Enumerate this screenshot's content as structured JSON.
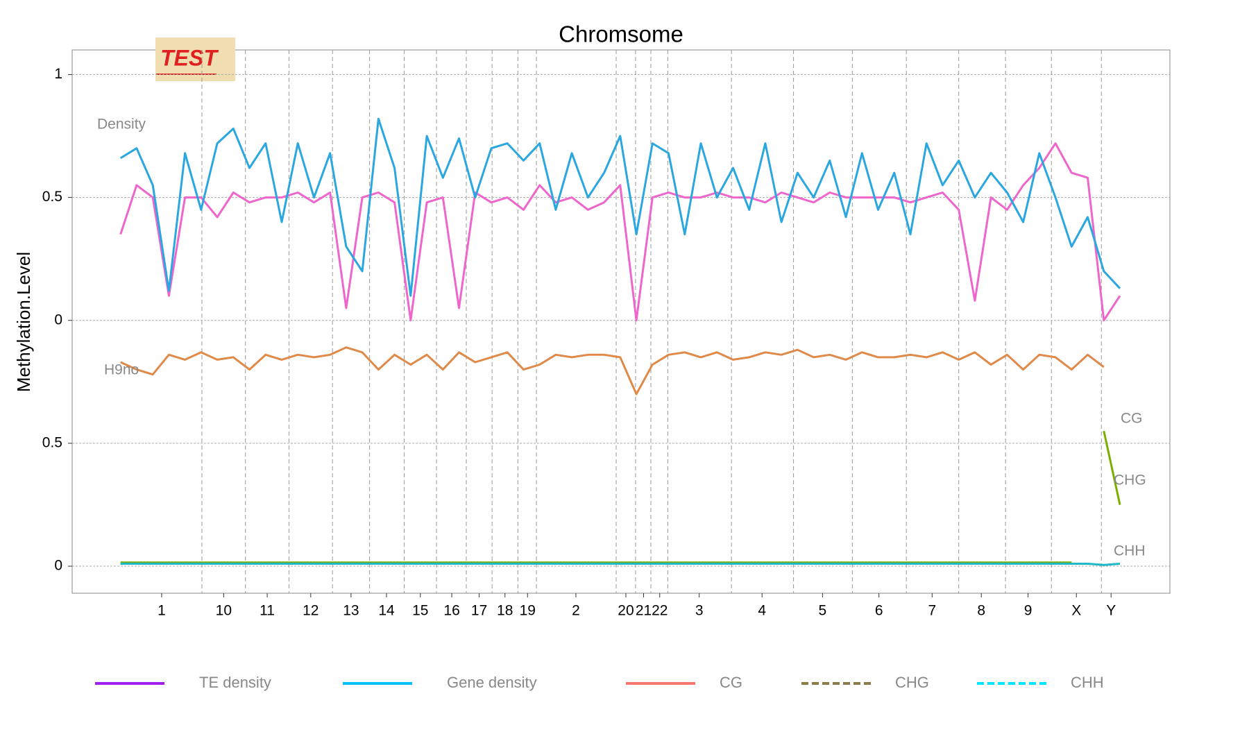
{
  "chart_data": {
    "type": "line",
    "title": "Chromsome",
    "y_label": "Methylation.Level",
    "badge": "TEST",
    "annotations": [
      "Density",
      "H9no",
      "CG",
      "CHG",
      "CHH"
    ],
    "xlim": [
      0,
      1362
    ],
    "ylim": [
      -1.11,
      1.1
    ],
    "yticks": [
      {
        "value": 1,
        "label": "1"
      },
      {
        "value": 0.5,
        "label": "0.5"
      },
      {
        "value": 0,
        "label": "0"
      },
      {
        "value": -0.5,
        "label": "0.5"
      },
      {
        "value": -1,
        "label": "0"
      }
    ],
    "xticks": [
      {
        "value": 111,
        "label": "1"
      },
      {
        "value": 188,
        "label": "10"
      },
      {
        "value": 242,
        "label": "11"
      },
      {
        "value": 296,
        "label": "12"
      },
      {
        "value": 346,
        "label": "13"
      },
      {
        "value": 390,
        "label": "14"
      },
      {
        "value": 432,
        "label": "15"
      },
      {
        "value": 471,
        "label": "16"
      },
      {
        "value": 505,
        "label": "17"
      },
      {
        "value": 537,
        "label": "18"
      },
      {
        "value": 565,
        "label": "19"
      },
      {
        "value": 625,
        "label": "2"
      },
      {
        "value": 687,
        "label": "20"
      },
      {
        "value": 709,
        "label": "21"
      },
      {
        "value": 729,
        "label": "22"
      },
      {
        "value": 778,
        "label": "3"
      },
      {
        "value": 856,
        "label": "4"
      },
      {
        "value": 931,
        "label": "5"
      },
      {
        "value": 1001,
        "label": "6"
      },
      {
        "value": 1067,
        "label": "7"
      },
      {
        "value": 1128,
        "label": "8"
      },
      {
        "value": 1186,
        "label": "9"
      },
      {
        "value": 1246,
        "label": "X"
      },
      {
        "value": 1289,
        "label": "Y"
      }
    ],
    "vlines": [
      161,
      215,
      269,
      323,
      369,
      412,
      452,
      489,
      521,
      553,
      576,
      675,
      699,
      718,
      739,
      818,
      895,
      968,
      1035,
      1100,
      1158,
      1215,
      1277
    ],
    "grid": true,
    "x": [
      60,
      80,
      100,
      120,
      140,
      160,
      180,
      200,
      220,
      240,
      260,
      280,
      300,
      320,
      340,
      360,
      380,
      400,
      420,
      440,
      460,
      480,
      500,
      520,
      540,
      560,
      580,
      600,
      620,
      640,
      660,
      680,
      700,
      720,
      740,
      760,
      780,
      800,
      820,
      840,
      860,
      880,
      900,
      920,
      940,
      960,
      980,
      1000,
      1020,
      1040,
      1060,
      1080,
      1100,
      1120,
      1140,
      1160,
      1180,
      1200,
      1220,
      1240,
      1260,
      1280,
      1300
    ],
    "series": [
      {
        "name": "TE density",
        "color": "#a020f0",
        "draw_color": "#ee66cc",
        "dashed": false,
        "values": [
          0.35,
          0.55,
          0.5,
          0.1,
          0.5,
          0.5,
          0.42,
          0.52,
          0.48,
          0.5,
          0.5,
          0.52,
          0.48,
          0.52,
          0.05,
          0.5,
          0.52,
          0.48,
          0.0,
          0.48,
          0.5,
          0.05,
          0.52,
          0.48,
          0.5,
          0.45,
          0.55,
          0.48,
          0.5,
          0.45,
          0.48,
          0.55,
          0.0,
          0.5,
          0.52,
          0.5,
          0.5,
          0.52,
          0.5,
          0.5,
          0.48,
          0.52,
          0.5,
          0.48,
          0.52,
          0.5,
          0.5,
          0.5,
          0.5,
          0.48,
          0.5,
          0.52,
          0.45,
          0.08,
          0.5,
          0.45,
          0.55,
          0.62,
          0.72,
          0.6,
          0.58,
          0.0,
          0.1
        ]
      },
      {
        "name": "Gene density",
        "color": "#00bfff",
        "draw_color": "#2aa6e0",
        "dashed": false,
        "values": [
          0.66,
          0.7,
          0.55,
          0.12,
          0.68,
          0.45,
          0.72,
          0.78,
          0.62,
          0.72,
          0.4,
          0.72,
          0.5,
          0.68,
          0.3,
          0.2,
          0.82,
          0.62,
          0.1,
          0.75,
          0.58,
          0.74,
          0.5,
          0.7,
          0.72,
          0.65,
          0.72,
          0.45,
          0.68,
          0.5,
          0.6,
          0.75,
          0.35,
          0.72,
          0.68,
          0.35,
          0.72,
          0.5,
          0.62,
          0.45,
          0.72,
          0.4,
          0.6,
          0.5,
          0.65,
          0.42,
          0.68,
          0.45,
          0.6,
          0.35,
          0.72,
          0.55,
          0.65,
          0.5,
          0.6,
          0.52,
          0.4,
          0.68,
          0.5,
          0.3,
          0.42,
          0.2,
          0.13
        ]
      },
      {
        "name": "CG",
        "color": "#f8766d",
        "draw_color": "#e08a4a",
        "dashed": false,
        "values": [
          -0.17,
          -0.2,
          -0.22,
          -0.14,
          -0.16,
          -0.13,
          -0.16,
          -0.15,
          -0.2,
          -0.14,
          -0.16,
          -0.14,
          -0.15,
          -0.14,
          -0.11,
          -0.13,
          -0.2,
          -0.14,
          -0.18,
          -0.14,
          -0.2,
          -0.13,
          -0.17,
          -0.15,
          -0.13,
          -0.2,
          -0.18,
          -0.14,
          -0.15,
          -0.14,
          -0.14,
          -0.15,
          -0.3,
          -0.18,
          -0.14,
          -0.13,
          -0.15,
          -0.13,
          -0.16,
          -0.15,
          -0.13,
          -0.14,
          -0.12,
          -0.15,
          -0.14,
          -0.16,
          -0.13,
          -0.15,
          -0.15,
          -0.14,
          -0.15,
          -0.13,
          -0.16,
          -0.13,
          -0.18,
          -0.14,
          -0.2,
          -0.14,
          -0.15,
          -0.2,
          -0.14,
          -0.19,
          null
        ]
      },
      {
        "name": "CHG",
        "color": "#8b7d4a",
        "draw_color": "#7cae00",
        "dashed": true,
        "values": [
          -0.985,
          -0.985,
          -0.985,
          -0.985,
          -0.985,
          -0.985,
          -0.985,
          -0.985,
          -0.985,
          -0.985,
          -0.985,
          -0.985,
          -0.985,
          -0.985,
          -0.985,
          -0.985,
          -0.985,
          -0.985,
          -0.985,
          -0.985,
          -0.985,
          -0.985,
          -0.985,
          -0.985,
          -0.985,
          -0.985,
          -0.985,
          -0.985,
          -0.985,
          -0.985,
          -0.985,
          -0.985,
          -0.985,
          -0.985,
          -0.985,
          -0.985,
          -0.985,
          -0.985,
          -0.985,
          -0.985,
          -0.985,
          -0.985,
          -0.985,
          -0.985,
          -0.985,
          -0.985,
          -0.985,
          -0.985,
          -0.985,
          -0.985,
          -0.985,
          -0.985,
          -0.985,
          -0.985,
          -0.985,
          -0.985,
          -0.985,
          -0.985,
          -0.985,
          -0.985,
          null,
          -0.45,
          -0.75
        ]
      },
      {
        "name": "CHH",
        "color": "#00e5ff",
        "draw_color": "#1fb8c8",
        "dashed": true,
        "values": [
          -0.99,
          -0.99,
          -0.99,
          -0.99,
          -0.99,
          -0.99,
          -0.99,
          -0.99,
          -0.99,
          -0.99,
          -0.99,
          -0.99,
          -0.99,
          -0.99,
          -0.99,
          -0.99,
          -0.99,
          -0.99,
          -0.99,
          -0.99,
          -0.99,
          -0.99,
          -0.99,
          -0.99,
          -0.99,
          -0.99,
          -0.99,
          -0.99,
          -0.99,
          -0.99,
          -0.99,
          -0.99,
          -0.99,
          -0.99,
          -0.99,
          -0.99,
          -0.99,
          -0.99,
          -0.99,
          -0.99,
          -0.99,
          -0.99,
          -0.99,
          -0.99,
          -0.99,
          -0.99,
          -0.99,
          -0.99,
          -0.99,
          -0.99,
          -0.99,
          -0.99,
          -0.99,
          -0.99,
          -0.99,
          -0.99,
          -0.99,
          -0.99,
          -0.99,
          -0.99,
          -0.99,
          -0.995,
          -0.99
        ]
      }
    ]
  }
}
